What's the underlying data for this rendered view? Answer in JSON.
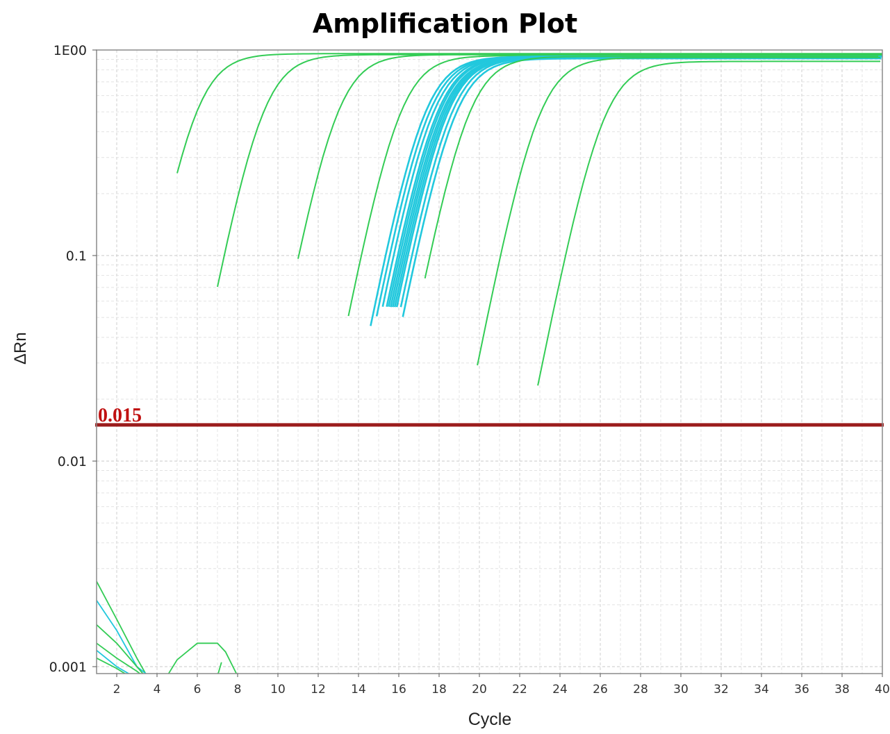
{
  "chart_data": {
    "type": "line",
    "title": "Amplification Plot",
    "xlabel": "Cycle",
    "ylabel": "ΔRn",
    "xlim": [
      1,
      40
    ],
    "ylim": [
      0.0009,
      1.0
    ],
    "yscale": "log",
    "grid": true,
    "x_ticks": [
      2,
      4,
      6,
      8,
      10,
      12,
      14,
      16,
      18,
      20,
      22,
      24,
      26,
      28,
      30,
      32,
      34,
      36,
      38,
      40
    ],
    "y_ticks": [
      {
        "value": 0.001,
        "label": "0.001"
      },
      {
        "value": 0.01,
        "label": "0.01"
      },
      {
        "value": 0.1,
        "label": "0.1"
      },
      {
        "value": 1.0,
        "label": "1E00"
      }
    ],
    "threshold": {
      "value": 0.015,
      "label": "0.015",
      "color": "#9b1c1c"
    },
    "colors": {
      "green": "#33cc55",
      "cyan": "#22c8dd"
    },
    "series": [
      {
        "color": "green",
        "ct": 5.9,
        "plateau": 0.96,
        "start": 5
      },
      {
        "color": "green",
        "ct": 9.2,
        "plateau": 0.95,
        "start": 7
      },
      {
        "color": "green",
        "ct": 12.9,
        "plateau": 0.95,
        "start": 11
      },
      {
        "color": "green",
        "ct": 16.0,
        "plateau": 0.94,
        "start": 13.5
      },
      {
        "color": "cyan",
        "ct": 17.2,
        "plateau": 0.93,
        "start": 14.6
      },
      {
        "color": "cyan",
        "ct": 17.4,
        "plateau": 0.93,
        "start": 14.9
      },
      {
        "color": "cyan",
        "ct": 17.6,
        "plateau": 0.93,
        "start": 15.2
      },
      {
        "color": "cyan",
        "ct": 17.8,
        "plateau": 0.93,
        "start": 15.4
      },
      {
        "color": "cyan",
        "ct": 17.9,
        "plateau": 0.93,
        "start": 15.5
      },
      {
        "color": "cyan",
        "ct": 18.0,
        "plateau": 0.92,
        "start": 15.6
      },
      {
        "color": "cyan",
        "ct": 18.1,
        "plateau": 0.92,
        "start": 15.7
      },
      {
        "color": "cyan",
        "ct": 18.2,
        "plateau": 0.92,
        "start": 15.8
      },
      {
        "color": "cyan",
        "ct": 18.3,
        "plateau": 0.92,
        "start": 15.9
      },
      {
        "color": "cyan",
        "ct": 18.5,
        "plateau": 0.92,
        "start": 16.1
      },
      {
        "color": "cyan",
        "ct": 18.7,
        "plateau": 0.91,
        "start": 16.2
      },
      {
        "color": "green",
        "ct": 19.4,
        "plateau": 0.93,
        "start": 17.3
      },
      {
        "color": "green",
        "ct": 22.9,
        "plateau": 0.92,
        "start": 19.9
      },
      {
        "color": "green",
        "ct": 26.1,
        "plateau": 0.88,
        "start": 22.9
      }
    ]
  }
}
